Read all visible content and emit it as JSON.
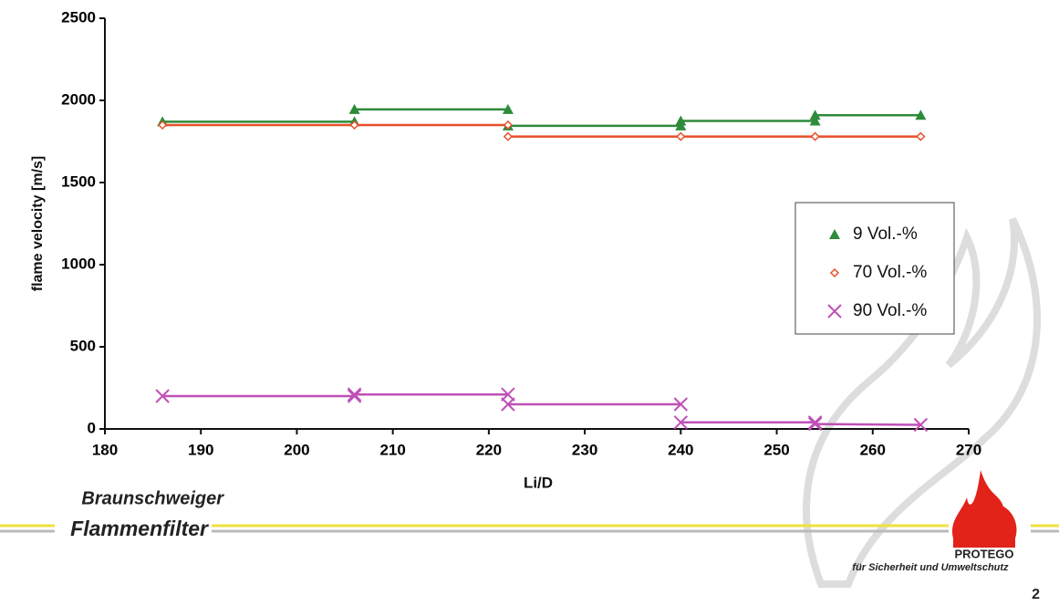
{
  "chart_data": {
    "type": "line",
    "xlabel": "Li/D",
    "ylabel": "flame velocity  [m/s]",
    "xlim": [
      180,
      270
    ],
    "xticks": [
      180,
      190,
      200,
      210,
      220,
      230,
      240,
      250,
      260,
      270
    ],
    "ylim": [
      0,
      2500
    ],
    "yticks": [
      0,
      500,
      1000,
      1500,
      2000,
      2500
    ],
    "grid": false,
    "legend": "right",
    "series": [
      {
        "name": "9 Vol.-%",
        "color": "#2e8b3a",
        "marker": "triangle",
        "x": [
          186,
          206,
          206,
          206,
          222,
          222,
          222,
          240,
          240,
          240,
          254,
          254,
          254,
          265
        ],
        "values": [
          1870,
          1870,
          null,
          1945,
          1945,
          null,
          1845,
          1845,
          null,
          1875,
          1875,
          null,
          1910,
          1910
        ]
      },
      {
        "name": "70 Vol.-%",
        "color": "#e8502a",
        "marker": "diamond",
        "x": [
          186,
          206,
          222,
          222,
          222,
          240,
          254,
          265
        ],
        "values": [
          1850,
          1850,
          1850,
          null,
          1780,
          1780,
          1780,
          1780
        ]
      },
      {
        "name": "90 Vol.-%",
        "color": "#c050b8",
        "marker": "cross",
        "x": [
          186,
          206,
          206,
          206,
          222,
          222,
          222,
          240,
          240,
          240,
          254,
          254,
          254,
          265
        ],
        "values": [
          200,
          200,
          null,
          210,
          210,
          null,
          150,
          150,
          null,
          40,
          40,
          null,
          30,
          25
        ]
      }
    ]
  },
  "footer": {
    "brand_line1": "Braunschweiger",
    "brand_line2": "Flammenfilter",
    "logo": "PROTEGO",
    "slogan": "für Sicherheit und Umweltschutz",
    "page": "2"
  }
}
